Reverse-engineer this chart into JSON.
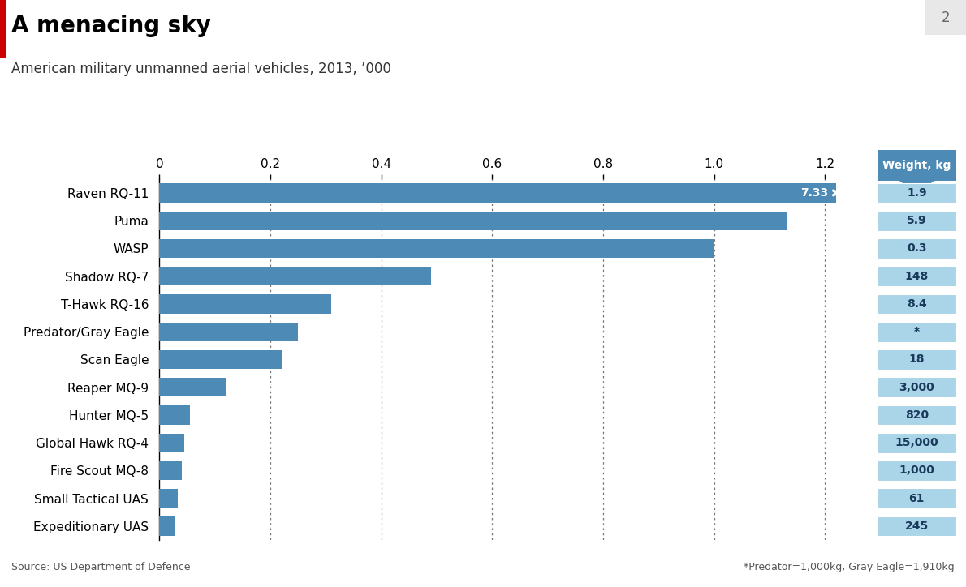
{
  "title": "A menacing sky",
  "subtitle": "American military unmanned aerial vehicles, 2013, ’000",
  "categories": [
    "Raven RQ-11",
    "Puma",
    "WASP",
    "Shadow RQ-7",
    "T-Hawk RQ-16",
    "Predator/Gray Eagle",
    "Scan Eagle",
    "Reaper MQ-9",
    "Hunter MQ-5",
    "Global Hawk RQ-4",
    "Fire Scout MQ-8",
    "Small Tactical UAS",
    "Expeditionary UAS"
  ],
  "values": [
    1.22,
    1.13,
    1.0,
    0.49,
    0.31,
    0.25,
    0.22,
    0.12,
    0.055,
    0.045,
    0.04,
    0.033,
    0.027
  ],
  "weights": [
    "1.9",
    "5.9",
    "0.3",
    "148",
    "8.4",
    "*",
    "18",
    "3,000",
    "820",
    "15,000",
    "1,000",
    "61",
    "245"
  ],
  "bar_color": "#4d8ab5",
  "weight_bg_color": "#aad4e8",
  "weight_header_bg": "#4d8ab5",
  "weight_text_color": "#1a3a5c",
  "xlim_display": 1.28,
  "bar_clip_value": 1.22,
  "raven_label": "7.33",
  "title_fontsize": 20,
  "subtitle_fontsize": 12,
  "source_text": "Source: US Department of Defence",
  "footnote_text": "*Predator=1,000kg, Gray Eagle=1,910kg",
  "page_number": "2",
  "top_bar_color": "#cc0000",
  "background_color": "#ffffff",
  "grid_color": "#666666",
  "xticks": [
    0,
    0.2,
    0.4,
    0.6,
    0.8,
    1.0,
    1.2
  ],
  "xticklabels": [
    "0",
    "0.2",
    "0.4",
    "0.6",
    "0.8",
    "1.0",
    "1.2"
  ]
}
